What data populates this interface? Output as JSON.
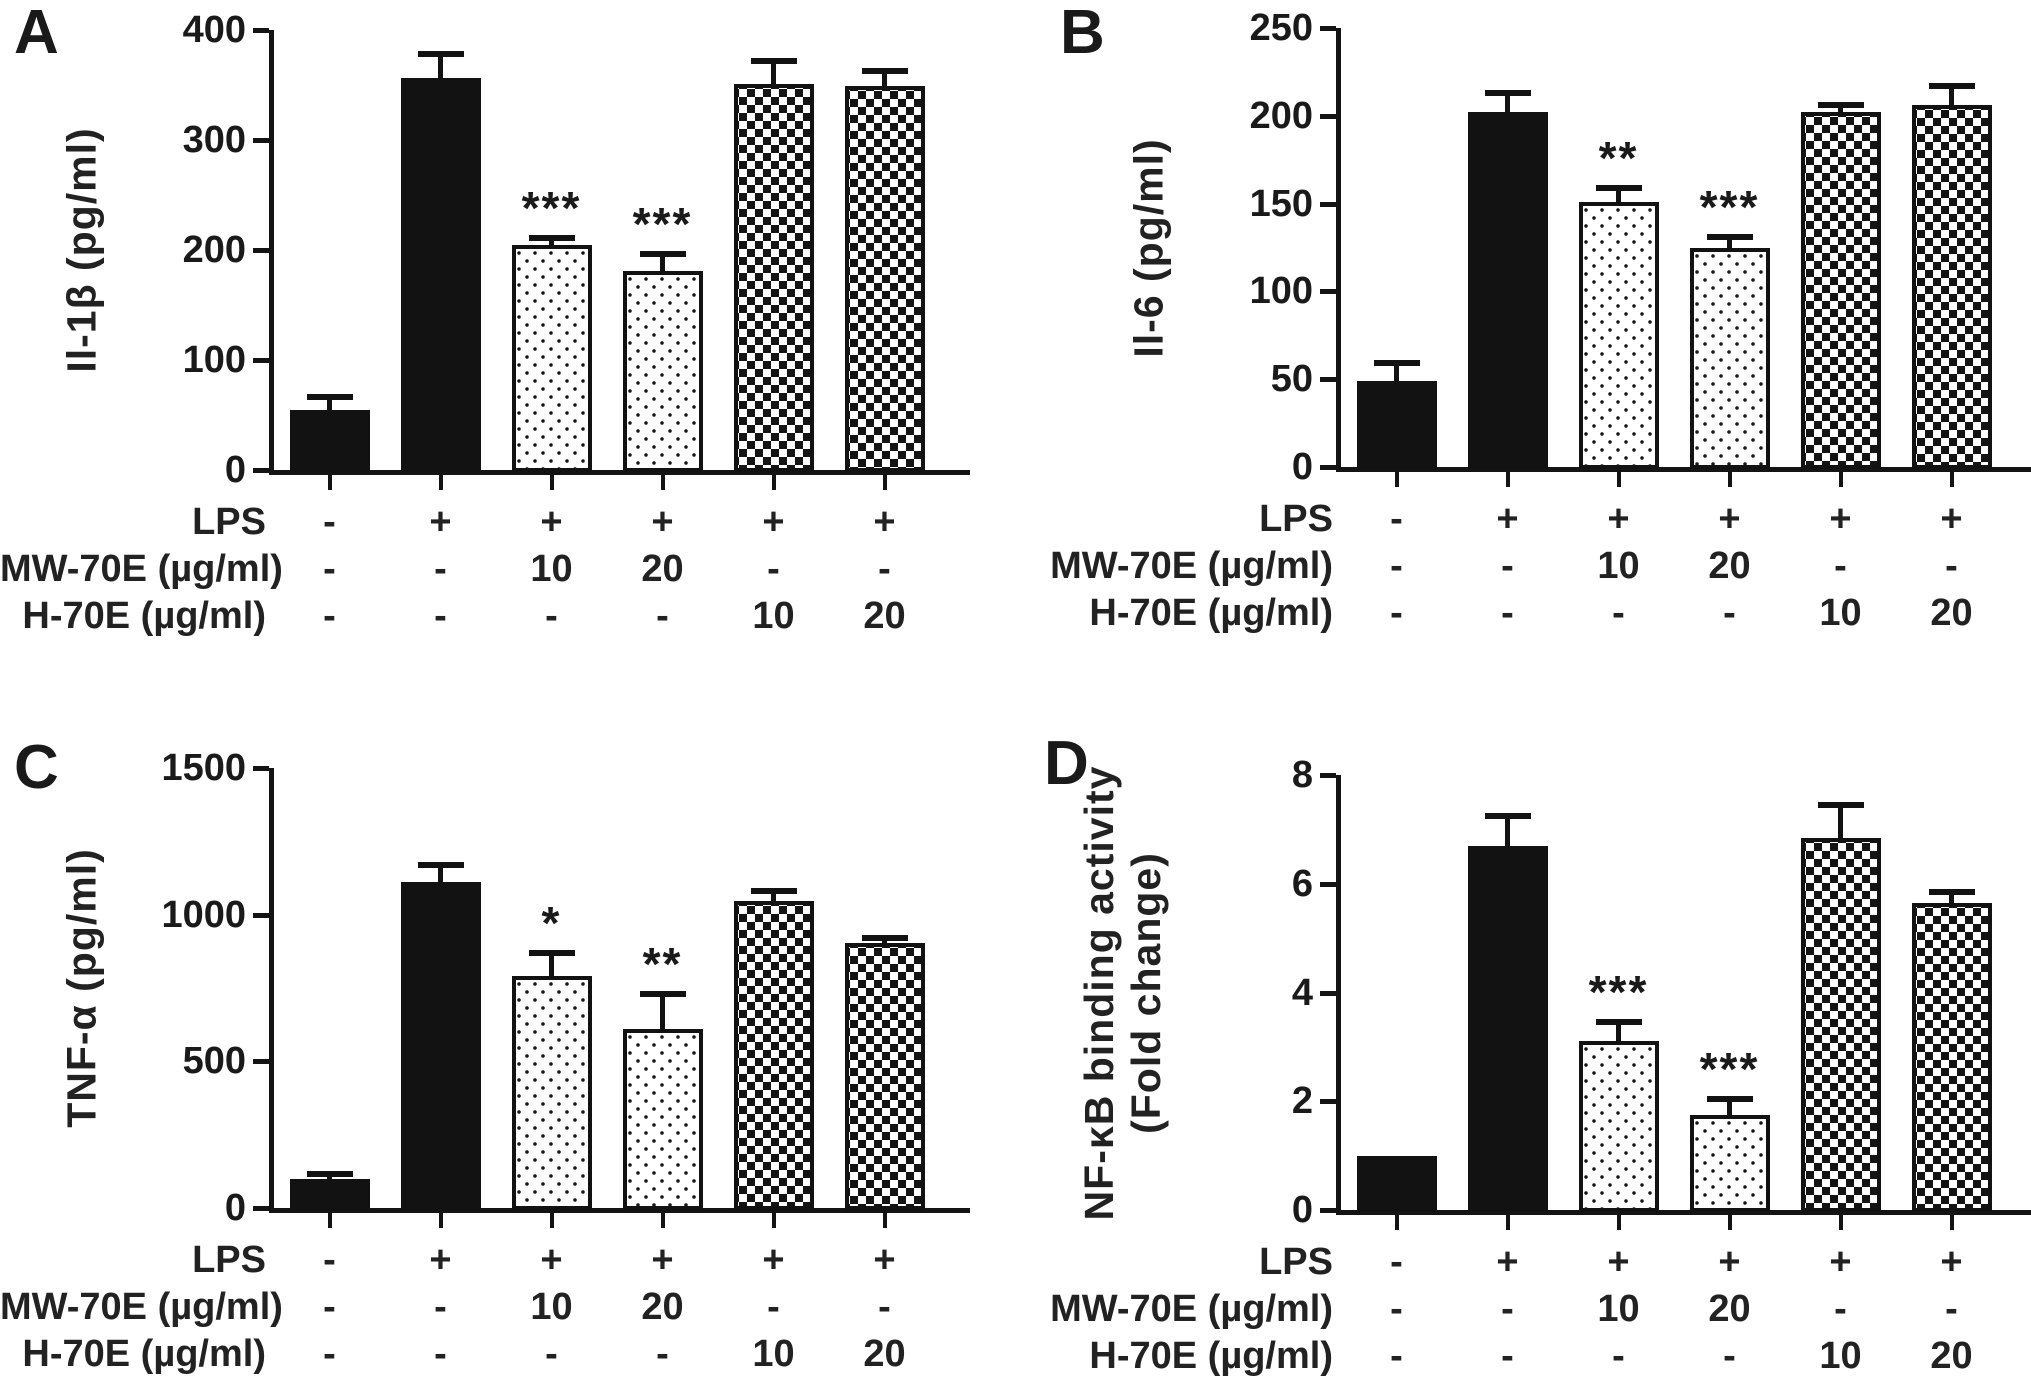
{
  "figure": {
    "background": "#ffffff",
    "ink_color": "#121212",
    "panel_letters": [
      "A",
      "B",
      "C",
      "D"
    ]
  },
  "chart_data": [
    {
      "type": "bar",
      "panel": "A",
      "title": "",
      "xlabel": "",
      "ylabel": "Il-1β  (pg/ml)",
      "ylabel_line2": "",
      "ylim": [
        0,
        400
      ],
      "yticks": [
        0,
        100,
        200,
        300,
        400
      ],
      "grid": false,
      "legend_position": "none",
      "values": [
        55,
        356,
        205,
        181,
        351,
        349
      ],
      "errors": [
        11,
        22,
        6,
        15,
        21,
        14
      ],
      "significance": [
        "",
        "",
        "***",
        "***",
        "",
        ""
      ],
      "patterns": [
        "solid",
        "solid",
        "dots",
        "dots",
        "checker",
        "checker"
      ],
      "conditions": [
        {
          "label": "LPS",
          "values": [
            "-",
            "+",
            "+",
            "+",
            "+",
            "+"
          ]
        },
        {
          "label": "MW-70E (µg/ml)",
          "values": [
            "-",
            "-",
            "10",
            "20",
            "-",
            "-"
          ]
        },
        {
          "label": "H-70E (µg/ml)",
          "values": [
            "-",
            "-",
            "-",
            "-",
            "10",
            "20"
          ]
        }
      ]
    },
    {
      "type": "bar",
      "panel": "B",
      "title": "",
      "xlabel": "",
      "ylabel": "Il-6  (pg/ml)",
      "ylabel_line2": "",
      "ylim": [
        0,
        250
      ],
      "yticks": [
        0,
        50,
        100,
        150,
        200,
        250
      ],
      "grid": false,
      "legend_position": "none",
      "values": [
        49,
        202,
        151,
        125,
        202,
        206
      ],
      "errors": [
        10,
        11,
        8,
        6,
        4,
        11
      ],
      "significance": [
        "",
        "",
        "**",
        "***",
        "",
        ""
      ],
      "patterns": [
        "solid",
        "solid",
        "dots",
        "dots",
        "checker",
        "checker"
      ],
      "conditions": [
        {
          "label": "LPS",
          "values": [
            "-",
            "+",
            "+",
            "+",
            "+",
            "+"
          ]
        },
        {
          "label": "MW-70E (µg/ml)",
          "values": [
            "-",
            "-",
            "10",
            "20",
            "-",
            "-"
          ]
        },
        {
          "label": "H-70E (µg/ml)",
          "values": [
            "-",
            "-",
            "-",
            "-",
            "10",
            "20"
          ]
        }
      ]
    },
    {
      "type": "bar",
      "panel": "C",
      "title": "",
      "xlabel": "",
      "ylabel": "TNF-α (pg/ml)",
      "ylabel_line2": "",
      "ylim": [
        0,
        1500
      ],
      "yticks": [
        0,
        500,
        1000,
        1500
      ],
      "grid": false,
      "legend_position": "none",
      "values": [
        100,
        1110,
        790,
        610,
        1045,
        905
      ],
      "errors": [
        15,
        60,
        80,
        120,
        35,
        15
      ],
      "significance": [
        "",
        "",
        "*",
        "**",
        "",
        ""
      ],
      "patterns": [
        "solid",
        "solid",
        "dots",
        "dots",
        "checker",
        "checker"
      ],
      "conditions": [
        {
          "label": "LPS",
          "values": [
            "-",
            "+",
            "+",
            "+",
            "+",
            "+"
          ]
        },
        {
          "label": "MW-70E (µg/ml)",
          "values": [
            "-",
            "-",
            "10",
            "20",
            "-",
            "-"
          ]
        },
        {
          "label": "H-70E (µg/ml)",
          "values": [
            "-",
            "-",
            "-",
            "-",
            "10",
            "20"
          ]
        }
      ]
    },
    {
      "type": "bar",
      "panel": "D",
      "title": "",
      "xlabel": "",
      "ylabel": "NF-κB binding activity",
      "ylabel_line2": "(Fold change)",
      "ylim": [
        0,
        8
      ],
      "yticks": [
        0,
        2,
        4,
        6,
        8
      ],
      "grid": false,
      "legend_position": "none",
      "values": [
        1.0,
        6.7,
        3.1,
        1.75,
        6.85,
        5.65
      ],
      "errors": [
        0,
        0.55,
        0.35,
        0.3,
        0.6,
        0.2
      ],
      "significance": [
        "",
        "",
        "***",
        "***",
        "",
        ""
      ],
      "patterns": [
        "solid",
        "solid",
        "dots",
        "dots",
        "checker",
        "checker"
      ],
      "conditions": [
        {
          "label": "LPS",
          "values": [
            "-",
            "+",
            "+",
            "+",
            "+",
            "+"
          ]
        },
        {
          "label": "MW-70E (µg/ml)",
          "values": [
            "-",
            "-",
            "10",
            "20",
            "-",
            "-"
          ]
        },
        {
          "label": "H-70E (µg/ml)",
          "values": [
            "-",
            "-",
            "-",
            "-",
            "10",
            "20"
          ]
        }
      ]
    }
  ]
}
